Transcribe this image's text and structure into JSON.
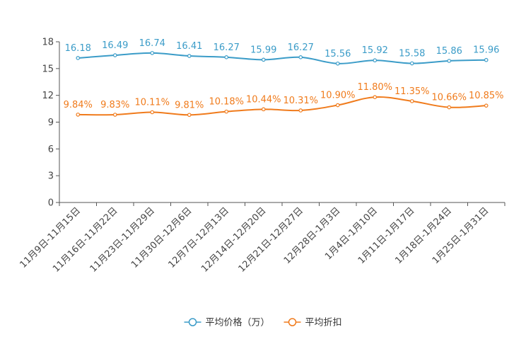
{
  "chart_data": {
    "type": "line",
    "categories": [
      "11月9日-11月15日",
      "11月16日-11月22日",
      "11月23日-11月29日",
      "11月30日-12月6日",
      "12月7日-12月13日",
      "12月14日-12月20日",
      "12月21日-12月27日",
      "12月28日-1月3日",
      "1月4日-1月10日",
      "1月11日-1月17日",
      "1月18日-1月24日",
      "1月25日-1月31日"
    ],
    "series": [
      {
        "name": "平均价格（万）",
        "color": "#3b9cc8",
        "values": [
          16.18,
          16.49,
          16.74,
          16.41,
          16.27,
          15.99,
          16.27,
          15.56,
          15.92,
          15.58,
          15.86,
          15.96
        ],
        "labels": [
          "16.18",
          "16.49",
          "16.74",
          "16.41",
          "16.27",
          "15.99",
          "16.27",
          "15.56",
          "15.92",
          "15.58",
          "15.86",
          "15.96"
        ]
      },
      {
        "name": "平均折扣",
        "color": "#f07b1c",
        "values": [
          9.84,
          9.83,
          10.11,
          9.81,
          10.18,
          10.44,
          10.31,
          10.9,
          11.8,
          11.35,
          10.66,
          10.85
        ],
        "labels": [
          "9.84%",
          "9.83%",
          "10.11%",
          "9.81%",
          "10.18%",
          "10.44%",
          "10.31%",
          "10.90%",
          "11.80%",
          "11.35%",
          "10.66%",
          "10.85%"
        ]
      }
    ],
    "ylim": [
      0,
      18
    ],
    "yticks": [
      "0",
      "3",
      "6",
      "9",
      "12",
      "15",
      "18"
    ],
    "title": "",
    "xlabel": "",
    "ylabel": "",
    "legend_position": "bottom-center"
  }
}
